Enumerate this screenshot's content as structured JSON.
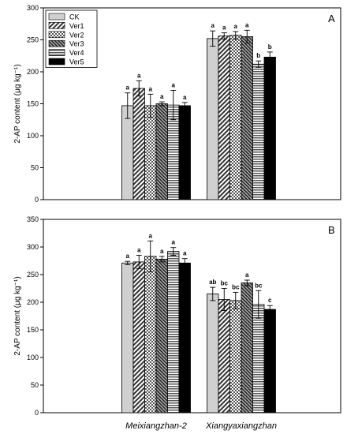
{
  "chart_data": [
    {
      "type": "bar",
      "panel": "A",
      "categories": [
        "Meixiangzhan-2",
        "Xiangyaxiangzhan"
      ],
      "ylabel": "2-AP content (μg kg⁻¹)",
      "ylim": [
        0,
        300
      ],
      "yticks": [
        0,
        50,
        100,
        150,
        200,
        250,
        300
      ],
      "legend_position": "top-left",
      "grid": false,
      "series": [
        {
          "name": "CK",
          "fill": "light-gray",
          "color": "#cccccc",
          "values": [
            147,
            252
          ],
          "errors": [
            20,
            12
          ],
          "labels": [
            "a",
            "a"
          ]
        },
        {
          "name": "Ver1",
          "fill": "diagonal-dark",
          "color": "#555555",
          "values": [
            174,
            256
          ],
          "errors": [
            12,
            5
          ],
          "labels": [
            "a",
            "a"
          ]
        },
        {
          "name": "Ver2",
          "fill": "crosshatch",
          "color": "#888888",
          "values": [
            147,
            257
          ],
          "errors": [
            18,
            6
          ],
          "labels": [
            "a",
            "a"
          ]
        },
        {
          "name": "Ver3",
          "fill": "diagonal-dense",
          "color": "#444444",
          "values": [
            150,
            255
          ],
          "errors": [
            3,
            10
          ],
          "labels": [
            "a",
            "a"
          ]
        },
        {
          "name": "Ver4",
          "fill": "horizontal-lines",
          "color": "#777777",
          "values": [
            148,
            212
          ],
          "errors": [
            23,
            5
          ],
          "labels": [
            "a",
            "b"
          ]
        },
        {
          "name": "Ver5",
          "fill": "solid-black",
          "color": "#000000",
          "values": [
            147,
            223
          ],
          "errors": [
            5,
            8
          ],
          "labels": [
            "a",
            "b"
          ]
        }
      ]
    },
    {
      "type": "bar",
      "panel": "B",
      "categories": [
        "Meixiangzhan-2",
        "Xiangyaxiangzhan"
      ],
      "xlabels": [
        "Meixiangzhan-2",
        "Xiangyaxiangzhan"
      ],
      "ylabel": "2-AP content (μg kg⁻¹)",
      "ylim": [
        0,
        350
      ],
      "yticks": [
        0,
        50,
        100,
        150,
        200,
        250,
        300,
        350
      ],
      "grid": false,
      "series": [
        {
          "name": "CK",
          "values": [
            271,
            215
          ],
          "errors": [
            3,
            12
          ],
          "labels": [
            "a",
            "ab"
          ]
        },
        {
          "name": "Ver1",
          "values": [
            273,
            205
          ],
          "errors": [
            12,
            20
          ],
          "labels": [
            "a",
            "bc"
          ]
        },
        {
          "name": "Ver2",
          "values": [
            283,
            203
          ],
          "errors": [
            28,
            15
          ],
          "labels": [
            "a",
            "bc"
          ]
        },
        {
          "name": "Ver3",
          "values": [
            278,
            235
          ],
          "errors": [
            5,
            5
          ],
          "labels": [
            "a",
            "a"
          ]
        },
        {
          "name": "Ver4",
          "values": [
            292,
            196
          ],
          "errors": [
            7,
            25
          ],
          "labels": [
            "a",
            "bc"
          ]
        },
        {
          "name": "Ver5",
          "values": [
            271,
            187
          ],
          "errors": [
            8,
            7
          ],
          "labels": [
            "a",
            "c"
          ]
        }
      ]
    }
  ]
}
